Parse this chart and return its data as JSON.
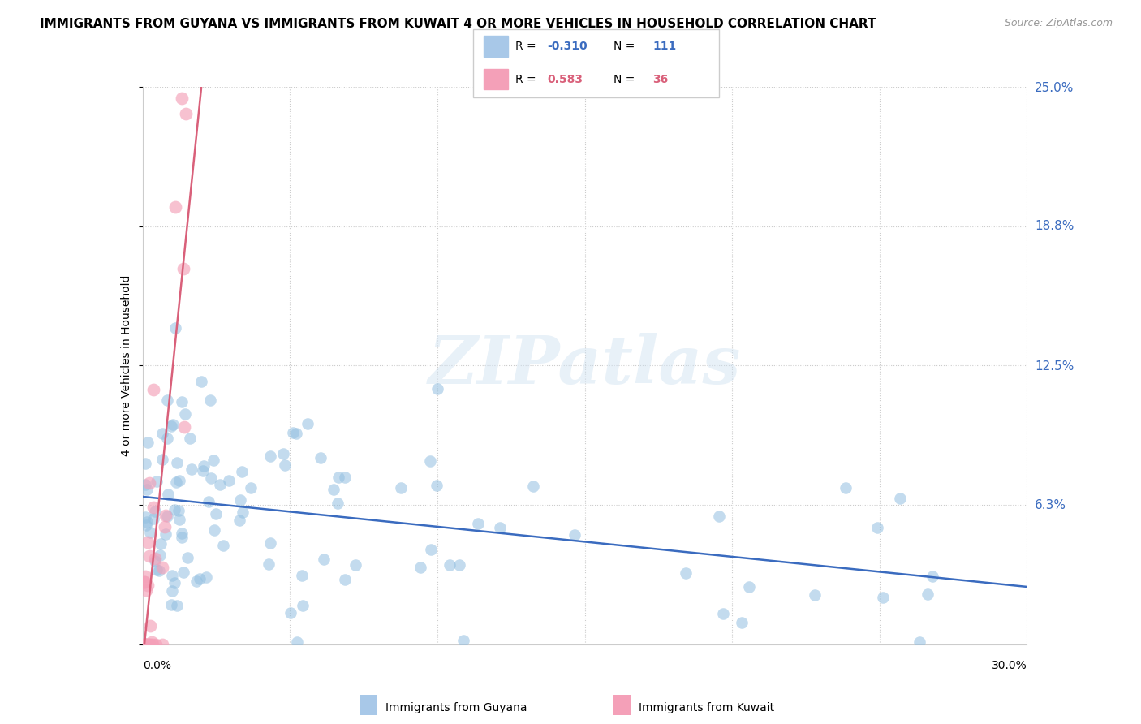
{
  "title": "IMMIGRANTS FROM GUYANA VS IMMIGRANTS FROM KUWAIT 4 OR MORE VEHICLES IN HOUSEHOLD CORRELATION CHART",
  "source": "Source: ZipAtlas.com",
  "ylabel": "4 or more Vehicles in Household",
  "right_yticklabels": [
    "",
    "6.3%",
    "12.5%",
    "18.8%",
    "25.0%"
  ],
  "right_ytick_vals": [
    0.0,
    0.063,
    0.125,
    0.188,
    0.25
  ],
  "legend_guyana_R": "-0.310",
  "legend_guyana_N": "111",
  "legend_kuwait_R": "0.583",
  "legend_kuwait_N": "36",
  "legend_guyana_label": "Immigrants from Guyana",
  "legend_kuwait_label": "Immigrants from Kuwait",
  "guyana_scatter_color": "#92bfe0",
  "kuwait_scatter_color": "#f4a0b8",
  "trendline_guyana_color": "#3a6bbf",
  "trendline_kuwait_color": "#d9607a",
  "watermark": "ZIPatlas",
  "xmin": 0.0,
  "xmax": 0.3,
  "ymin": 0.0,
  "ymax": 0.25,
  "legend_box_color": "#a8c8e8",
  "legend_box_color2": "#f4a0b8",
  "guyana_R_color": "#3a6bbf",
  "kuwait_R_color": "#d9607a"
}
